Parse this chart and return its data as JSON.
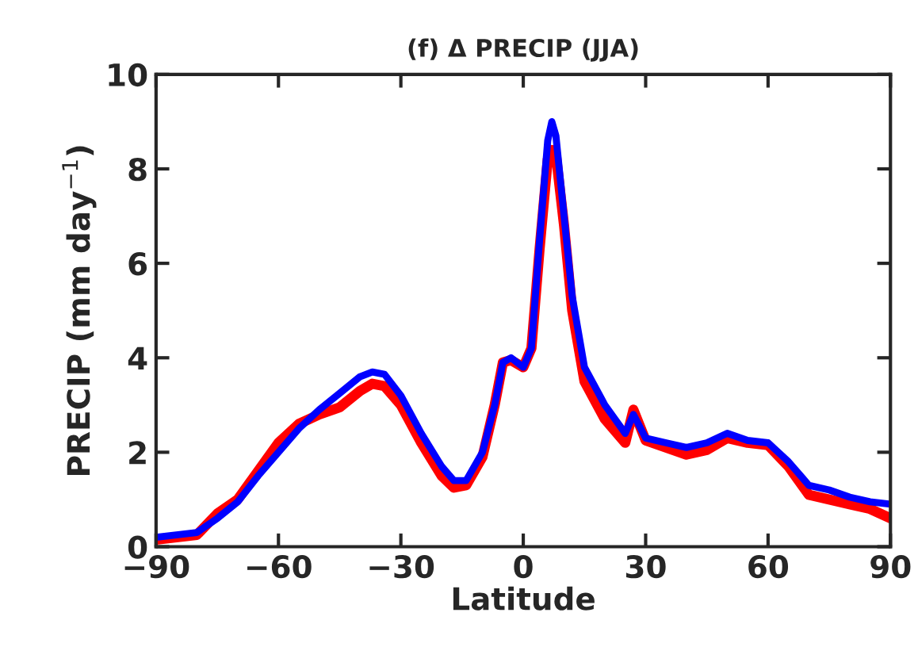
{
  "chart_data": {
    "type": "line",
    "title": "(f) Δ PRECIP (JJA)",
    "xlabel": "Latitude",
    "ylabel": "PRECIP (mm day$^{−1}$)",
    "x": [
      -90,
      -85,
      -80,
      -75,
      -70,
      -65,
      -60,
      -55,
      -50,
      -45,
      -40,
      -37,
      -34,
      -30,
      -25,
      -20,
      -17,
      -14,
      -10,
      -7,
      -5,
      -3,
      0,
      2,
      4,
      6,
      7,
      8,
      10,
      12,
      15,
      20,
      25,
      27,
      30,
      35,
      40,
      45,
      50,
      55,
      60,
      65,
      70,
      75,
      80,
      85,
      90
    ],
    "series": [
      {
        "color": "#ff0000",
        "values": [
          0.15,
          0.2,
          0.25,
          0.7,
          1.0,
          1.6,
          2.2,
          2.6,
          2.8,
          2.95,
          3.3,
          3.45,
          3.4,
          3.0,
          2.2,
          1.5,
          1.25,
          1.3,
          1.9,
          3.0,
          3.9,
          3.95,
          3.8,
          4.2,
          6.3,
          8.2,
          8.4,
          8.3,
          6.8,
          5.0,
          3.5,
          2.7,
          2.2,
          2.9,
          2.25,
          2.1,
          1.95,
          2.05,
          2.3,
          2.2,
          2.15,
          1.7,
          1.1,
          1.0,
          0.9,
          0.8,
          0.6
        ]
      },
      {
        "color": "#0000ff",
        "values": [
          0.2,
          0.25,
          0.3,
          0.6,
          0.95,
          1.5,
          2.0,
          2.5,
          2.9,
          3.25,
          3.6,
          3.7,
          3.65,
          3.2,
          2.4,
          1.7,
          1.4,
          1.4,
          2.0,
          3.0,
          3.9,
          4.0,
          3.8,
          4.2,
          6.5,
          8.6,
          9.0,
          8.7,
          7.0,
          5.3,
          3.8,
          3.0,
          2.4,
          2.8,
          2.3,
          2.2,
          2.1,
          2.2,
          2.4,
          2.25,
          2.2,
          1.8,
          1.3,
          1.2,
          1.05,
          0.95,
          0.9
        ]
      }
    ],
    "xlim": [
      -90,
      90
    ],
    "xticks": [
      -90,
      -60,
      -30,
      0,
      30,
      60,
      90
    ],
    "ylim": [
      0,
      10
    ],
    "yticks": [
      0,
      2,
      4,
      6,
      8,
      10
    ],
    "grid": false,
    "legend": false,
    "marker": "none",
    "line_style": "solid"
  }
}
